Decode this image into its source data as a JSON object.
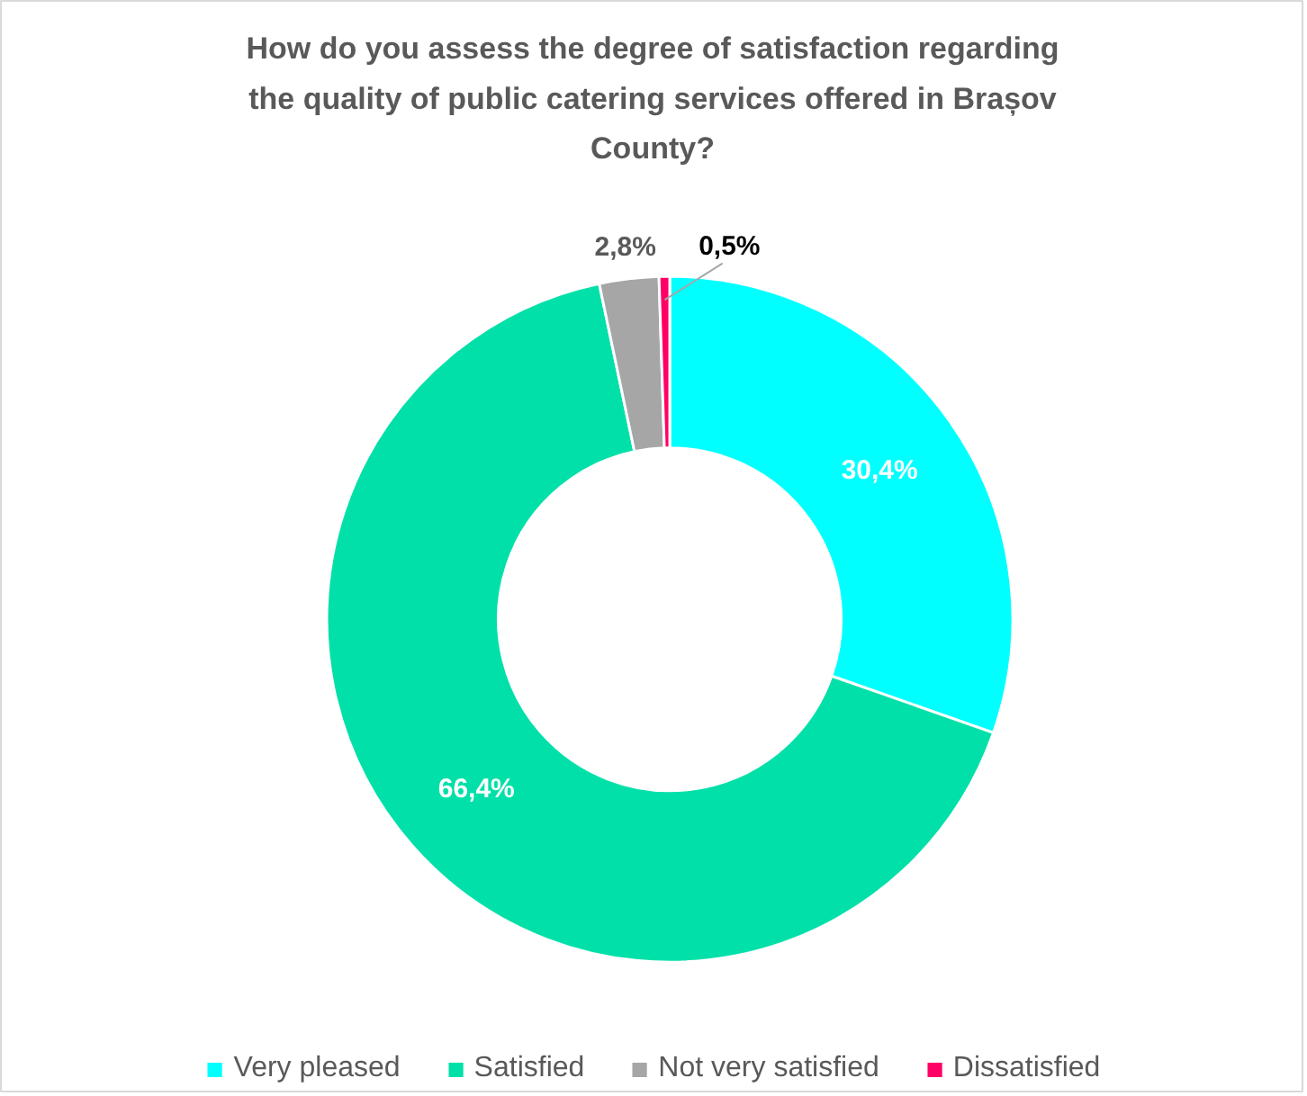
{
  "chart_data": {
    "type": "donut",
    "title": "How do you assess the degree of satisfaction regarding the quality of public catering services offered in Brașov County?",
    "categories": [
      "Very pleased",
      "Satisfied",
      "Not very satisfied",
      "Dissatisfied"
    ],
    "values": [
      30.4,
      66.4,
      2.8,
      0.5
    ],
    "value_labels": [
      "30,4%",
      "66,4%",
      "2,8%",
      "0,5%"
    ],
    "colors": [
      "#00ffff",
      "#00e0a8",
      "#a6a6a6",
      "#ff0066"
    ],
    "legend": "bottom"
  }
}
